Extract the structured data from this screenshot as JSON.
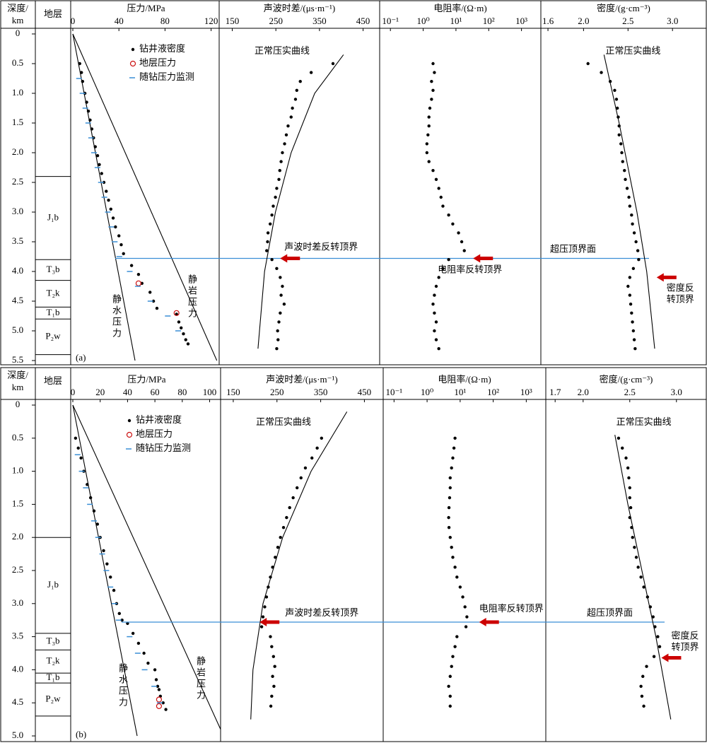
{
  "chart_data": [
    {
      "type": "welllog",
      "label": "(a)",
      "depth_axis": {
        "label": [
          "深度/",
          "km"
        ],
        "ylim": [
          0,
          5.5
        ],
        "yticks": [
          0,
          0.5,
          {
            "value": 1,
            "label": "1.0"
          },
          1.5,
          {
            "value": 2,
            "label": "2.0"
          },
          2.5,
          {
            "value": 3,
            "label": "3.0"
          },
          3.5,
          {
            "value": 4,
            "label": "4.0"
          },
          4.5,
          {
            "value": 5,
            "label": "5.0"
          },
          5.5
        ]
      },
      "strata": {
        "title": "地层",
        "units": [
          {
            "top": 0,
            "base": 2.4
          },
          {
            "top": 2.4,
            "base": 3.8,
            "label": "J₁b"
          },
          {
            "top": 3.8,
            "base": 4.15,
            "label": "T₃b"
          },
          {
            "top": 4.15,
            "base": 4.6,
            "label": "T₂k"
          },
          {
            "top": 4.6,
            "base": 4.8,
            "label": "T₁b"
          },
          {
            "top": 4.8,
            "base": 5.4,
            "label": "P₂w"
          },
          {
            "top": 5.4,
            "base": 5.5
          }
        ]
      },
      "pressure": {
        "xlabel": "压力/MPa",
        "xlim": [
          0,
          127
        ],
        "xticks": [
          0,
          40,
          80,
          120
        ],
        "series": [
          {
            "name": "钻井液密度",
            "color": "#000000",
            "marker": "dot",
            "depth": [
              0.5,
              0.65,
              0.8,
              1.0,
              1.15,
              1.3,
              1.45,
              1.6,
              1.75,
              1.9,
              2.05,
              2.2,
              2.35,
              2.5,
              2.65,
              2.8,
              2.95,
              3.1,
              3.25,
              3.4,
              3.55,
              3.7,
              3.9,
              4.05,
              4.2,
              4.35,
              4.5,
              4.62,
              4.72,
              4.85,
              4.95,
              5.05,
              5.15,
              5.22
            ],
            "values": [
              6,
              7.5,
              8.5,
              10.5,
              12,
              13.5,
              15,
              16.5,
              18,
              19.5,
              21.5,
              23,
              25,
              27,
              29,
              31,
              33,
              35,
              37,
              40,
              42,
              44,
              51,
              57,
              60,
              67,
              70,
              73,
              90,
              92,
              94,
              96,
              98,
              100
            ]
          },
          {
            "name": "地层压力",
            "color": "#cc1111",
            "marker": "circle",
            "depth": [
              4.2,
              4.7
            ],
            "values": [
              57,
              90
            ]
          },
          {
            "name": "随钻压力监测",
            "color": "#3a8fd6",
            "marker": "dash",
            "depth": [
              0.75,
              1.0,
              1.25,
              1.5,
              1.75,
              2.0,
              2.25,
              2.5,
              2.75,
              3.0,
              3.25,
              3.5,
              3.75,
              4.0,
              4.25,
              4.5,
              4.75,
              5.0
            ],
            "values": [
              6,
              9,
              11.5,
              14,
              16.5,
              19,
              22,
              25,
              28,
              31,
              34,
              37,
              41,
              50,
              57,
              68,
              83,
              92
            ]
          }
        ],
        "lines": [
          {
            "name": "静水压力",
            "depth": [
              0,
              5.5
            ],
            "values": [
              0,
              54
            ]
          },
          {
            "name": "静岩压力",
            "depth": [
              0,
              5.5
            ],
            "values": [
              0,
              125
            ]
          }
        ]
      },
      "depth": [
        0.5,
        0.65,
        0.8,
        0.95,
        1.1,
        1.25,
        1.4,
        1.55,
        1.7,
        1.85,
        2.0,
        2.15,
        2.3,
        2.45,
        2.6,
        2.75,
        2.9,
        3.05,
        3.2,
        3.35,
        3.5,
        3.65,
        3.8,
        3.95,
        4.1,
        4.25,
        4.4,
        4.55,
        4.7,
        4.85,
        5.0,
        5.15,
        5.3
      ],
      "tracks": [
        {
          "xlabel": "声波时差/(μs·m⁻¹)",
          "xlim": [
            120,
            488
          ],
          "xticks": [
            150,
            250,
            350,
            450
          ],
          "values": [
            381,
            331,
            306,
            298,
            295,
            288,
            285,
            278,
            274,
            270,
            265,
            262,
            259,
            257,
            252,
            249,
            244,
            241,
            237,
            232,
            231,
            229,
            241,
            252,
            260,
            265,
            262,
            269,
            260,
            257,
            254,
            255,
            252
          ],
          "trend": {
            "name": "正常压实曲线",
            "depth": [
              0.35,
              1.0,
              2.0,
              3.0,
              4.0,
              5.3
            ],
            "values": [
              405,
              339,
              285,
              249,
              224,
              209
            ]
          },
          "reversal": {
            "label": "声波时差反转顶界"
          }
        },
        {
          "xlabel": "电阻率/(Ω·m)",
          "log": true,
          "xlim": [
            0.047,
            3900
          ],
          "xticks": [
            {
              "value": 0.1,
              "label": "10⁻¹"
            },
            {
              "value": 1,
              "label": "10⁰"
            },
            {
              "value": 10,
              "label": "10¹"
            },
            {
              "value": 100,
              "label": "10²"
            },
            {
              "value": 1000,
              "label": "10³"
            }
          ],
          "values": [
            2.0,
            2.2,
            1.8,
            2.0,
            1.8,
            1.6,
            1.5,
            1.5,
            1.4,
            1.3,
            1.3,
            1.5,
            2.0,
            2.5,
            3.0,
            3.5,
            4.0,
            6,
            8,
            12,
            15,
            18,
            6,
            4,
            3,
            2.5,
            2.2,
            2.0,
            2.2,
            2.5,
            2.2,
            2.5,
            3.0
          ],
          "reversal": {
            "label": "电阻率反转顶界"
          }
        },
        {
          "xlabel": "密度/(g·cm⁻³)",
          "xlim": [
            1.52,
            3.38
          ],
          "xticks": [
            1.6,
            {
              "value": 2,
              "label": "2.0"
            },
            2.5,
            {
              "value": 3,
              "label": "3.0"
            }
          ],
          "values": [
            2.05,
            2.2,
            2.3,
            2.35,
            2.37,
            2.38,
            2.39,
            2.4,
            2.4,
            2.42,
            2.43,
            2.44,
            2.46,
            2.47,
            2.49,
            2.51,
            2.52,
            2.54,
            2.55,
            2.57,
            2.59,
            2.61,
            2.62,
            2.56,
            2.52,
            2.5,
            2.52,
            2.53,
            2.54,
            2.55,
            2.56,
            2.57,
            2.58
          ],
          "trend": {
            "name": "正常压实曲线",
            "depth": [
              0.35,
              1.5,
              3.0,
              4.0,
              5.3
            ],
            "values": [
              2.23,
              2.4,
              2.6,
              2.71,
              2.8
            ]
          },
          "reversal": {
            "depth": 4.1,
            "label": [
              "密度反",
              "转顶界"
            ]
          }
        }
      ],
      "overpressure_top": {
        "depth": 3.78,
        "label": "超压顶界面"
      }
    },
    {
      "type": "welllog",
      "label": "(b)",
      "depth_axis": {
        "label": [
          "深度/",
          "km"
        ],
        "ylim": [
          0,
          5.0
        ],
        "yticks": [
          0,
          0.5,
          {
            "value": 1,
            "label": "1.0"
          },
          1.5,
          {
            "value": 2,
            "label": "2.0"
          },
          2.5,
          {
            "value": 3,
            "label": "3.0"
          },
          3.5,
          {
            "value": 4,
            "label": "4.0"
          },
          4.5,
          {
            "value": 5,
            "label": "5.0"
          }
        ]
      },
      "strata": {
        "title": "地层",
        "units": [
          {
            "top": 0,
            "base": 2.0
          },
          {
            "top": 2.0,
            "base": 3.45,
            "label": "J₁b"
          },
          {
            "top": 3.45,
            "base": 3.7,
            "label": "T₃b"
          },
          {
            "top": 3.7,
            "base": 4.05,
            "label": "T₂k"
          },
          {
            "top": 4.05,
            "base": 4.2,
            "label": "T₁b"
          },
          {
            "top": 4.2,
            "base": 4.7,
            "label": "P₂w"
          },
          {
            "top": 4.7,
            "base": 5.0
          }
        ]
      },
      "pressure": {
        "xlabel": "压力/MPa",
        "xlim": [
          0,
          108
        ],
        "xticks": [
          0,
          20,
          40,
          60,
          80,
          100
        ],
        "series": [
          {
            "name": "钻井液密度",
            "color": "#000000",
            "marker": "dot",
            "depth": [
              0.5,
              0.65,
              0.8,
              1.0,
              1.2,
              1.4,
              1.6,
              1.8,
              2.0,
              2.2,
              2.4,
              2.6,
              2.8,
              3.0,
              3.15,
              3.25,
              3.3,
              3.45,
              3.6,
              3.75,
              3.9,
              4.0,
              4.15,
              4.25,
              4.3,
              4.4,
              4.5,
              4.6
            ],
            "values": [
              2,
              4,
              6,
              8,
              10.5,
              13,
              15.5,
              18,
              20,
              22.5,
              25,
              27.5,
              30,
              32,
              34,
              36,
              40,
              44,
              48,
              52,
              55,
              60,
              61,
              62,
              63,
              64,
              66,
              68
            ]
          },
          {
            "name": "地层压力",
            "color": "#cc1111",
            "marker": "circle",
            "depth": [
              4.45,
              4.55
            ],
            "values": [
              63,
              63
            ]
          },
          {
            "name": "随钻压力监测",
            "color": "#3a8fd6",
            "marker": "dash",
            "depth": [
              0.75,
              1.0,
              1.25,
              1.5,
              1.75,
              2.0,
              2.25,
              2.5,
              2.75,
              3.0,
              3.25,
              3.5,
              3.75,
              4.0,
              4.25,
              4.5
            ],
            "values": [
              4,
              7,
              10,
              13,
              16,
              19,
              22,
              25,
              28,
              31,
              34,
              42,
              48,
              53,
              60,
              64
            ]
          }
        ],
        "lines": [
          {
            "name": "静水压力",
            "depth": [
              0,
              5.0
            ],
            "values": [
              0,
              47
            ]
          },
          {
            "name": "静岩压力",
            "depth": [
              0,
              4.9
            ],
            "values": [
              0,
              108
            ]
          }
        ]
      },
      "depth": [
        0.5,
        0.65,
        0.8,
        0.95,
        1.1,
        1.25,
        1.4,
        1.55,
        1.7,
        1.85,
        2.0,
        2.15,
        2.3,
        2.45,
        2.6,
        2.75,
        2.9,
        3.05,
        3.2,
        3.35,
        3.5,
        3.65,
        3.8,
        3.95,
        4.1,
        4.25,
        4.4,
        4.55
      ],
      "tracks": [
        {
          "xlabel": "声波时差/(μs·m⁻¹)",
          "xlim": [
            121,
            493
          ],
          "xticks": [
            150,
            250,
            350,
            450
          ],
          "values": [
            352,
            342,
            330,
            315,
            305,
            296,
            287,
            279,
            272,
            265,
            258,
            252,
            246,
            240,
            235,
            230,
            226,
            222,
            218,
            215,
            235,
            238,
            242,
            245,
            240,
            243,
            238,
            236
          ],
          "trend": {
            "name": "正常压实曲线",
            "depth": [
              0.1,
              1.0,
              2.0,
              3.0,
              4.0,
              4.75
            ],
            "values": [
              410,
              328,
              263,
              218,
              195,
              190
            ]
          },
          "reversal": {
            "label": "声波时差反转顶界"
          }
        },
        {
          "xlabel": "电阻率/(Ω·m)",
          "log": true,
          "xlim": [
            0.047,
            3900
          ],
          "xticks": [
            {
              "value": 0.1,
              "label": "10⁻¹"
            },
            {
              "value": 1,
              "label": "10⁰"
            },
            {
              "value": 10,
              "label": "10¹"
            },
            {
              "value": 100,
              "label": "10²"
            },
            {
              "value": 1000,
              "label": "10³"
            }
          ],
          "values": [
            7,
            6.5,
            6,
            5.5,
            5,
            5,
            4.8,
            4.6,
            4.5,
            4.6,
            5,
            5.5,
            6,
            7,
            8,
            10,
            12,
            14,
            16,
            15,
            8,
            7,
            6,
            5.5,
            5,
            4.5,
            5,
            5
          ],
          "reversal": {
            "label": "电阻率反转顶界"
          }
        },
        {
          "xlabel": "密度/(g·cm⁻³)",
          "xlim": [
            1.6,
            3.32
          ],
          "xticks": [
            1.7,
            {
              "value": 2,
              "label": "2.0"
            },
            2.5,
            {
              "value": 3,
              "label": "3.0"
            }
          ],
          "values": [
            2.38,
            2.42,
            2.46,
            2.48,
            2.49,
            2.5,
            2.5,
            2.51,
            2.5,
            2.52,
            2.53,
            2.55,
            2.57,
            2.59,
            2.62,
            2.65,
            2.69,
            2.72,
            2.75,
            2.77,
            2.8,
            2.82,
            2.76,
            2.68,
            2.64,
            2.62,
            2.63,
            2.65
          ],
          "trend": {
            "name": "正常压实曲线",
            "depth": [
              0.45,
              1.5,
              2.5,
              3.5,
              4.75
            ],
            "values": [
              2.34,
              2.48,
              2.63,
              2.78,
              2.94
            ]
          },
          "reversal": {
            "depth": 3.82,
            "label": [
              "密度反",
              "转顶界"
            ]
          }
        }
      ],
      "overpressure_top": {
        "depth": 3.28,
        "label": "超压顶界面"
      }
    }
  ]
}
